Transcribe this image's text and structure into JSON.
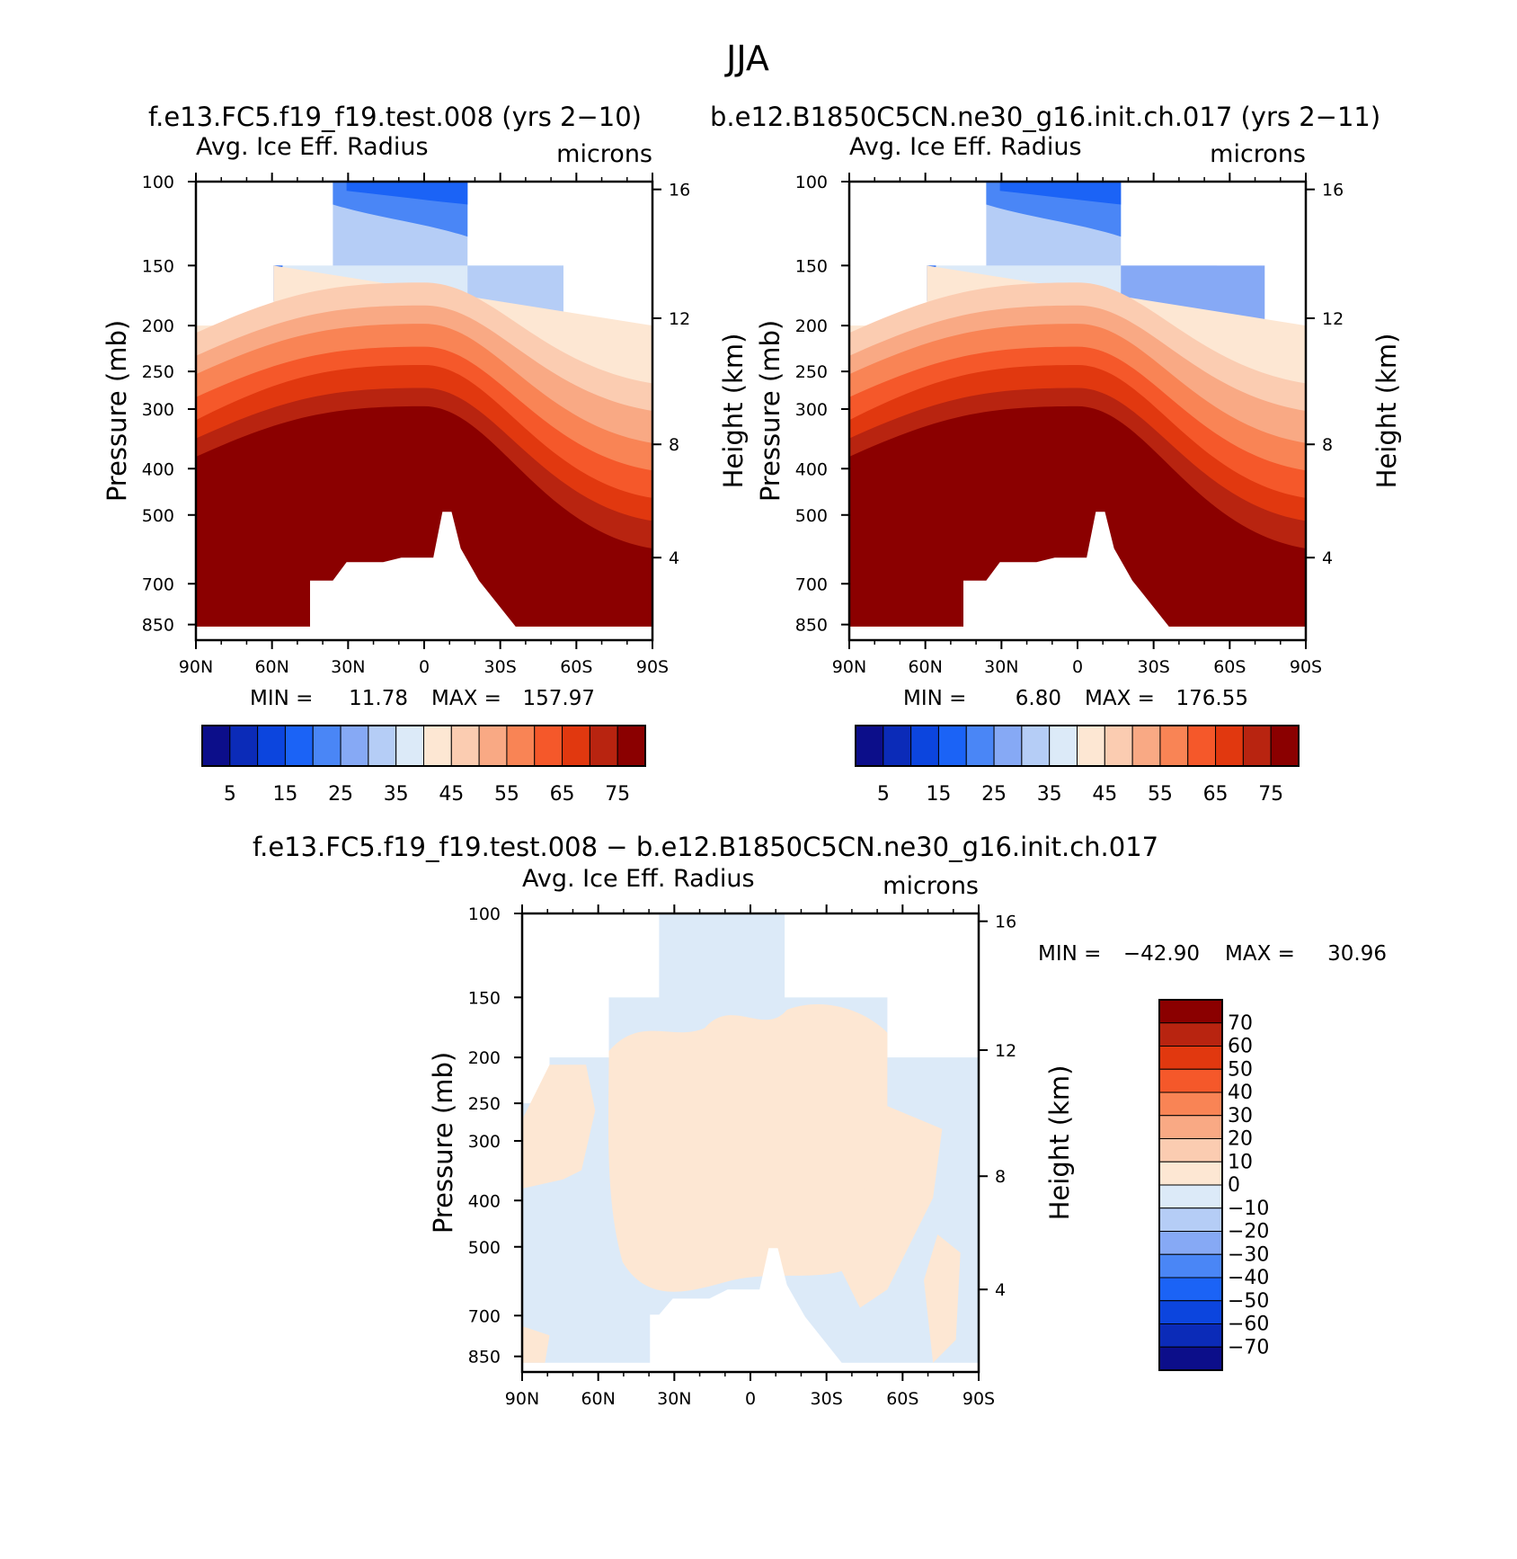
{
  "figure": {
    "title": "JJA",
    "case_left": "f.e13.FC5.f19_f19.test.008 (yrs 2−10)",
    "case_right": "b.e12.B1850C5CN.ne30_g16.init.ch.017 (yrs 2−11)",
    "case_diff": "f.e13.FC5.f19_f19.test.008 − b.e12.B1850C5CN.ne30_g16.init.ch.017"
  },
  "colors": {
    "abs_levels": [
      "#0c0e8a",
      "#0b2bb8",
      "#0c45de",
      "#1b63f6",
      "#4a86f6",
      "#86a9f5",
      "#b5cdf6",
      "#dceaf8",
      "#fde7d3",
      "#fbccb1",
      "#f9a984",
      "#f98455",
      "#f5582a",
      "#e1380f",
      "#b82410",
      "#8b0000"
    ],
    "diff_levels": [
      "#0c0e8a",
      "#0b2bb8",
      "#0c45de",
      "#1b63f6",
      "#4a86f6",
      "#86a9f5",
      "#b5cdf6",
      "#dceaf8",
      "#fde7d3",
      "#fbccb1",
      "#f9a984",
      "#f98455",
      "#f5582a",
      "#e1380f",
      "#b82410",
      "#8b0000"
    ]
  },
  "chart_data": [
    {
      "type": "heatmap",
      "panel": "left",
      "subtitle_left": "Avg. Ice Eff. Radius",
      "subtitle_right": "microns",
      "ylabel": "Pressure (mb)",
      "ylabel_right": "Height (km)",
      "xlabel": "",
      "x_ticks": [
        "90N",
        "60N",
        "30N",
        "0",
        "30S",
        "60S",
        "90S"
      ],
      "y_ticks": [
        "100",
        "150",
        "200",
        "250",
        "300",
        "400",
        "500",
        "700",
        "850"
      ],
      "y_ticks_right": [
        "16",
        "12",
        "8",
        "4"
      ],
      "min_label": "MIN =",
      "min_value": "11.78",
      "max_label": "MAX =",
      "max_value": "157.97",
      "colorbar_labels": [
        "5",
        "15",
        "25",
        "35",
        "45",
        "55",
        "65",
        "75"
      ],
      "ylim": [
        1000,
        100
      ],
      "xlim": [
        90,
        -90
      ]
    },
    {
      "type": "heatmap",
      "panel": "right",
      "subtitle_left": "Avg. Ice Eff. Radius",
      "subtitle_right": "microns",
      "ylabel": "Pressure (mb)",
      "ylabel_right": "Height (km)",
      "xlabel": "",
      "x_ticks": [
        "90N",
        "60N",
        "30N",
        "0",
        "30S",
        "60S",
        "90S"
      ],
      "y_ticks": [
        "100",
        "150",
        "200",
        "250",
        "300",
        "400",
        "500",
        "700",
        "850"
      ],
      "y_ticks_right": [
        "16",
        "12",
        "8",
        "4"
      ],
      "min_label": "MIN =",
      "min_value": "6.80",
      "max_label": "MAX =",
      "max_value": "176.55",
      "colorbar_labels": [
        "5",
        "15",
        "25",
        "35",
        "45",
        "55",
        "65",
        "75"
      ],
      "ylim": [
        1000,
        100
      ],
      "xlim": [
        90,
        -90
      ]
    },
    {
      "type": "heatmap",
      "panel": "difference",
      "subtitle_left": "Avg. Ice Eff. Radius",
      "subtitle_right": "microns",
      "ylabel": "Pressure (mb)",
      "ylabel_right": "Height (km)",
      "xlabel": "",
      "x_ticks": [
        "90N",
        "60N",
        "30N",
        "0",
        "30S",
        "60S",
        "90S"
      ],
      "y_ticks": [
        "100",
        "150",
        "200",
        "250",
        "300",
        "400",
        "500",
        "700",
        "850"
      ],
      "y_ticks_right": [
        "16",
        "12",
        "8",
        "4"
      ],
      "min_label": "MIN =",
      "min_value": "−42.90",
      "max_label": "MAX =",
      "max_value": "30.96",
      "colorbar_labels": [
        "70",
        "60",
        "50",
        "40",
        "30",
        "20",
        "10",
        "0",
        "−10",
        "−20",
        "−30",
        "−40",
        "−50",
        "−60",
        "−70"
      ],
      "ylim": [
        1000,
        100
      ],
      "xlim": [
        90,
        -90
      ]
    }
  ]
}
